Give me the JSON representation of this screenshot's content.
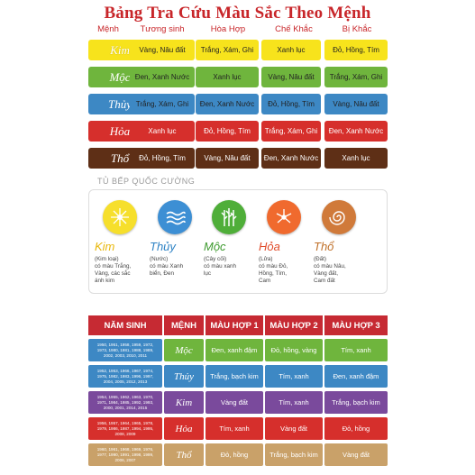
{
  "title": "Bảng Tra Cứu Màu Sắc Theo Mệnh",
  "colors": {
    "kim": "#f7e31c",
    "moc": "#6fb53d",
    "thuy": "#3d88c4",
    "hoa": "#d62f2c",
    "tho": "#5e2f16",
    "head_red": "#c62a33"
  },
  "table1": {
    "headers": [
      "Mệnh",
      "Tương sinh",
      "Hòa Hợp",
      "Chế Khắc",
      "Bị Khắc"
    ],
    "rows": [
      {
        "menh": "Kim",
        "tuong_sinh": "Vàng, Nâu đất",
        "hoa_hop": "Trắng, Xám, Ghi",
        "che_khac": "Xanh lục",
        "bi_khac": "Đỏ, Hồng, Tím"
      },
      {
        "menh": "Mộc",
        "tuong_sinh": "Đen, Xanh Nước",
        "hoa_hop": "Xanh lục",
        "che_khac": "Vàng, Nâu đất",
        "bi_khac": "Trắng, Xám, Ghi"
      },
      {
        "menh": "Thủy",
        "tuong_sinh": "Trắng, Xám, Ghi",
        "hoa_hop": "Đen, Xanh Nước",
        "che_khac": "Đỏ, Hồng, Tím",
        "bi_khac": "Vàng, Nâu đất"
      },
      {
        "menh": "Hỏa",
        "tuong_sinh": "Xanh lục",
        "hoa_hop": "Đỏ, Hồng, Tím",
        "che_khac": "Trắng, Xám, Ghi",
        "bi_khac": "Đen, Xanh Nước"
      },
      {
        "menh": "Thổ",
        "tuong_sinh": "Đỏ, Hồng, Tím",
        "hoa_hop": "Vàng, Nâu đất",
        "che_khac": "Đen, Xanh Nước",
        "bi_khac": "Xanh lục"
      }
    ]
  },
  "section_label": "TỦ BẾP QUỐC CƯỜNG",
  "elements": [
    {
      "name": "Kim",
      "desc": "(Kim loại)\ncó màu Trắng,\nVàng, các sắc\nánh kim",
      "color": "#e8b70a",
      "circle": "#f6df2c"
    },
    {
      "name": "Thủy",
      "desc": "(Nước)\ncó màu Xanh\nbiển, Đen",
      "color": "#2f83c5",
      "circle": "#3d8fd4"
    },
    {
      "name": "Mộc",
      "desc": "(Cây cối)\ncó màu xanh\nlục",
      "color": "#3e9a2f",
      "circle": "#4fae39"
    },
    {
      "name": "Hỏa",
      "desc": "(Lửa)\ncó màu Đỏ,\nHồng, Tím,\nCam",
      "color": "#e04b2a",
      "circle": "#f06a2e"
    },
    {
      "name": "Thổ",
      "desc": "(Đất)\ncó màu Nâu,\nVàng đất,\nCam đất",
      "color": "#c0712a",
      "circle": "#d07a3a"
    }
  ],
  "table2": {
    "headers": [
      "NĂM SINH",
      "MỆNH",
      "MÀU HỢP 1",
      "MÀU HỢP 2",
      "MÀU HỢP 3"
    ],
    "rows": [
      {
        "years": "1950, 1951, 1958, 1959, 1972,\n1973, 1980, 1981, 1988, 1989,\n2002, 2003, 2010, 2011",
        "menh": "Mộc",
        "hop1": "Đen, xanh đậm",
        "hop2": "Đỏ, hồng, vàng",
        "hop3": "Tím, xanh"
      },
      {
        "years": "1952, 1953, 1966, 1967, 1974,\n1975, 1982, 1983, 1996, 1997,\n2004, 2005, 2012, 2013",
        "menh": "Thủy",
        "hop1": "Trắng, bạch kim",
        "hop2": "Tím, xanh",
        "hop3": "Đen, xanh đậm"
      },
      {
        "years": "1954, 1955, 1962, 1963, 1970,\n1971, 1984, 1985, 1992, 1993,\n2000, 2001, 2014, 2015",
        "menh": "Kim",
        "hop1": "Vàng đất",
        "hop2": "Tím, xanh",
        "hop3": "Trắng, bạch kim"
      },
      {
        "years": "1956, 1957, 1964, 1965, 1978,\n1979, 1986, 1987, 1994, 1995,\n2008, 2009",
        "menh": "Hỏa",
        "hop1": "Tím, xanh",
        "hop2": "Vàng đất",
        "hop3": "Đỏ, hồng"
      },
      {
        "years": "1960, 1961, 1968, 1969, 1976,\n1977, 1990, 1991, 1998, 1999,\n2006, 2007",
        "menh": "Thổ",
        "hop1": "Đỏ, hồng",
        "hop2": "Trắng, bạch kim",
        "hop3": "Vàng đất"
      }
    ]
  }
}
